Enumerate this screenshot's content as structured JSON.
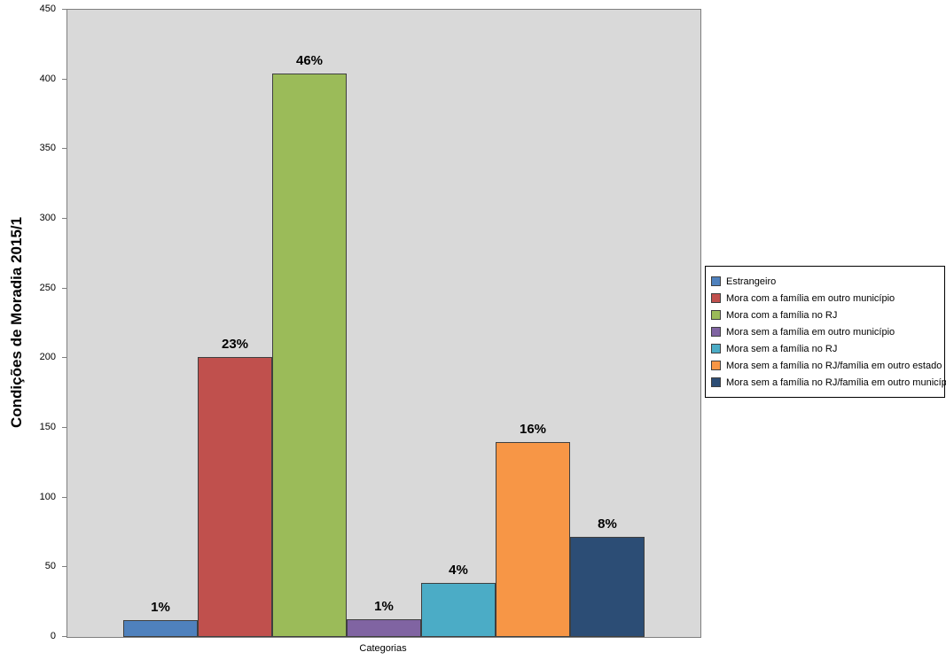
{
  "chart_data": {
    "type": "bar",
    "title": "Condições de Moradia 2015/1",
    "xlabel": "Categorias",
    "ylabel": "",
    "ylim": [
      0,
      450
    ],
    "ytick_step": 50,
    "grid": false,
    "legend_position": "right",
    "plot_background": "#d9d9d9",
    "bar_border_color": "#3f3f3f",
    "categories": [
      "Estrangeiro",
      "Mora com a família em outro município",
      "Mora com a família no RJ",
      "Mora sem a família em outro município",
      "Mora sem a família no RJ",
      "Mora sem a família no RJ/família em outro estado",
      "Mora sem a família no RJ/família em outro município"
    ],
    "values": [
      12,
      201,
      404,
      13,
      39,
      140,
      72
    ],
    "bar_labels": [
      "1%",
      "23%",
      "46%",
      "1%",
      "4%",
      "16%",
      "8%"
    ],
    "colors": [
      "#4f81bd",
      "#c0504d",
      "#9bbb59",
      "#8064a2",
      "#4bacc6",
      "#f79646",
      "#2c4d75"
    ]
  }
}
